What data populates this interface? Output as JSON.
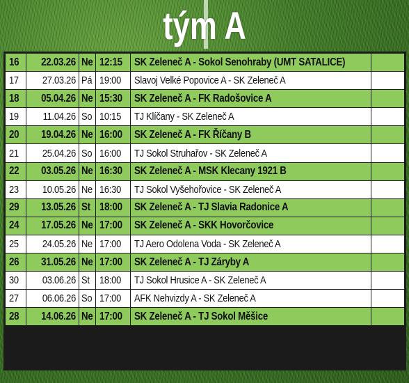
{
  "title": "tým A",
  "schedule": [
    {
      "round": "16",
      "date": "22.03.26",
      "day": "Ne",
      "time": "12:15",
      "match": "SK Zeleneč A - Sokol Senohraby (UMT SATALICE)",
      "home": true
    },
    {
      "round": "17",
      "date": "27.03.26",
      "day": "Pá",
      "time": "19:00",
      "match": "Slavoj Velké Popovice A - SK Zeleneč A",
      "home": false
    },
    {
      "round": "18",
      "date": "05.04.26",
      "day": "Ne",
      "time": "15:30",
      "match": "SK Zeleneč A - FK Radošovice A",
      "home": true
    },
    {
      "round": "19",
      "date": "11.04.26",
      "day": "So",
      "time": "10:15",
      "match": "TJ Klíčany - SK Zeleneč A",
      "home": false
    },
    {
      "round": "20",
      "date": "19.04.26",
      "day": "Ne",
      "time": "16:00",
      "match": "SK Zeleneč A - FK Říčany B",
      "home": true
    },
    {
      "round": "21",
      "date": "25.04.26",
      "day": "So",
      "time": "16:00",
      "match": "TJ Sokol Struhařov - SK Zeleneč A",
      "home": false
    },
    {
      "round": "22",
      "date": "03.05.26",
      "day": "Ne",
      "time": "16:30",
      "match": "SK Zeleneč A - MSK Klecany 1921 B",
      "home": true
    },
    {
      "round": "23",
      "date": "10.05.26",
      "day": "Ne",
      "time": "16:30",
      "match": "TJ Sokol Vyšehořovice - SK Zeleneč A",
      "home": false
    },
    {
      "round": "29",
      "date": "13.05.26",
      "day": "St",
      "time": "18:00",
      "match": "SK Zeleneč A - TJ Slavia Radonice A",
      "home": true
    },
    {
      "round": "24",
      "date": "17.05.26",
      "day": "Ne",
      "time": "17:00",
      "match": "SK Zeleneč A  - SKK Hovorčovice",
      "home": true
    },
    {
      "round": "25",
      "date": "24.05.26",
      "day": "Ne",
      "time": "17:00",
      "match": "TJ Aero Odolena Voda  - SK Zeleneč A",
      "home": false
    },
    {
      "round": "26",
      "date": "31.05.26",
      "day": "Ne",
      "time": "17:00",
      "match": "SK Zeleneč A - TJ Záryby A",
      "home": true
    },
    {
      "round": "30",
      "date": "03.06.26",
      "day": "St",
      "time": "18:00",
      "match": "TJ Sokol Hrusice A - SK Zeleneč A",
      "home": false
    },
    {
      "round": "27",
      "date": "06.06.26",
      "day": "So",
      "time": "17:00",
      "match": "AFK Nehvizdy A - SK Zeleneč A",
      "home": false
    },
    {
      "round": "28",
      "date": "14.06.26",
      "day": "Ne",
      "time": "17:00",
      "match": "SK Zeleneč A  - TJ Sokol Měšice",
      "home": true
    }
  ],
  "colors": {
    "home_row": "#8fcb5c",
    "away_row": "#ffffff",
    "grid": "#1b1b1b"
  }
}
